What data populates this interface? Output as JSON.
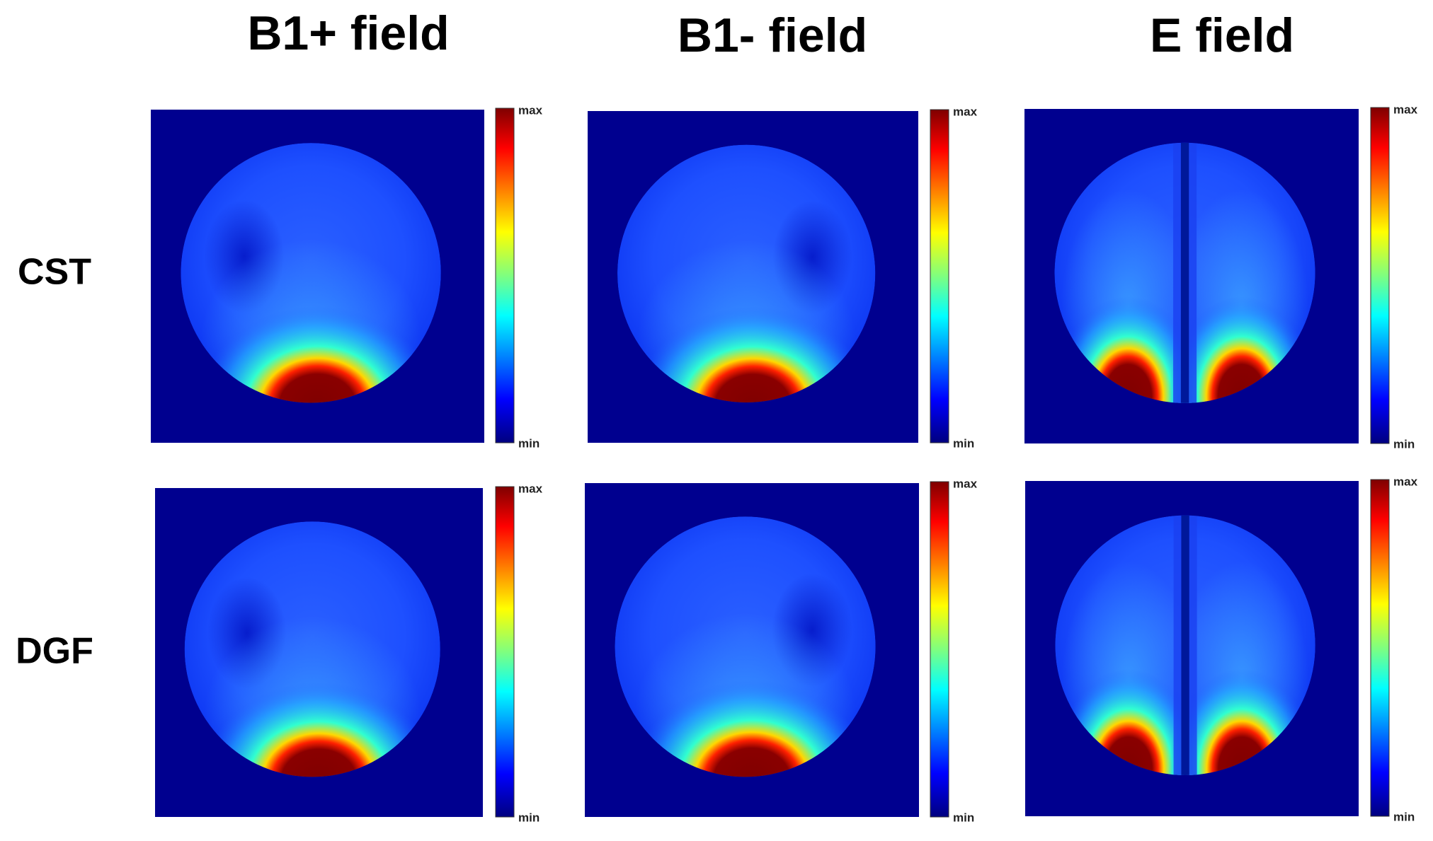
{
  "columns": [
    {
      "title": "B1+ field"
    },
    {
      "title": "B1- field"
    },
    {
      "title": "E field"
    }
  ],
  "rows": [
    {
      "label": "CST"
    },
    {
      "label": "DGF"
    }
  ],
  "colorbar": {
    "max": "max",
    "min": "min"
  }
}
